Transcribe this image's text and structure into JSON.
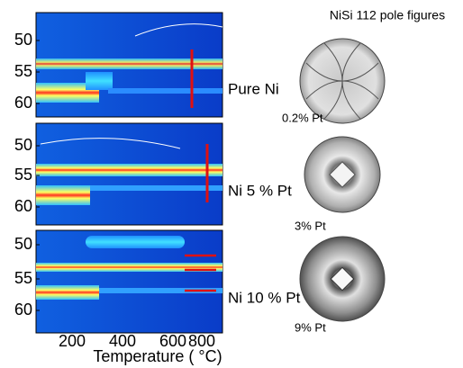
{
  "title": "NiSi 112 pole figures",
  "panels": [
    {
      "label": "Pure Ni",
      "yticks": [
        "50",
        "55",
        "60"
      ],
      "pole_label": "0.2% Pt"
    },
    {
      "label": "Ni 5 % Pt",
      "yticks": [
        "50",
        "55",
        "60"
      ],
      "pole_label": "3% Pt"
    },
    {
      "label": "Ni 10 % Pt",
      "yticks": [
        "50",
        "55",
        "60"
      ],
      "pole_label": "9% Pt"
    }
  ],
  "x_axis": {
    "label": "Temperature ( °C)",
    "ticks": [
      "200",
      "400",
      "600",
      "800"
    ]
  }
}
